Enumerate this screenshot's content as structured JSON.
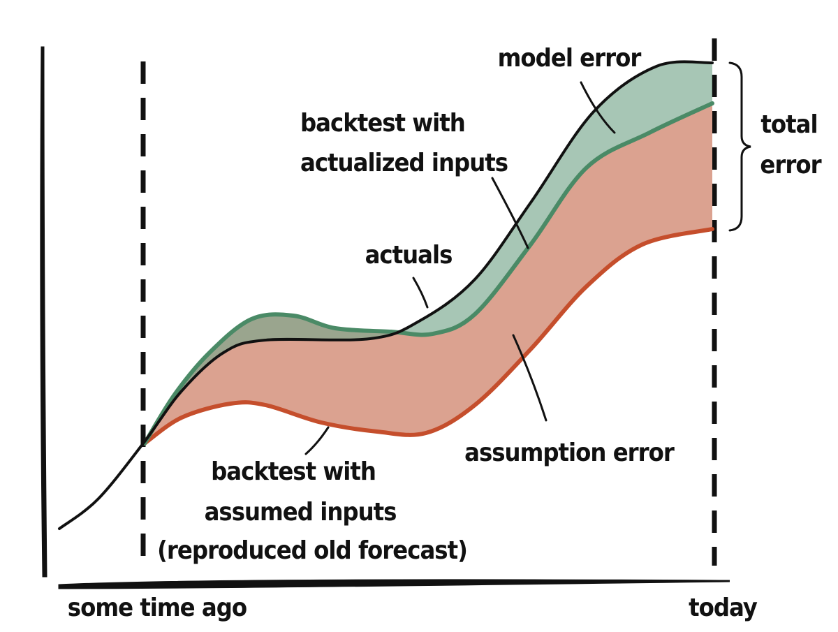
{
  "labels": {
    "model_error": "model error",
    "backtest_actualized": [
      "backtest with",
      "actualized inputs"
    ],
    "actuals": "actuals",
    "total_error": [
      "total",
      "error"
    ],
    "assumption_error": "assumption error",
    "backtest_assumed": [
      "backtest with",
      "assumed inputs",
      "(reproduced old forecast)"
    ],
    "x_axis": {
      "start": "some time ago",
      "end": "today"
    }
  }
}
